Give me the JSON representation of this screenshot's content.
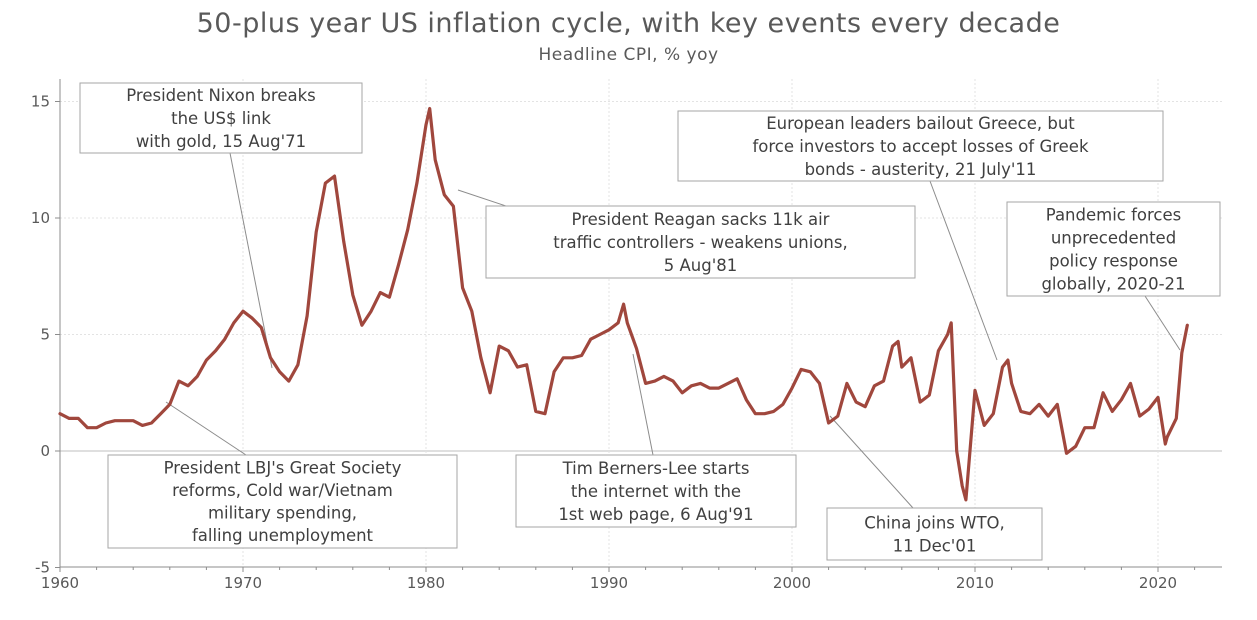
{
  "chart_data": {
    "type": "line",
    "title": "50-plus year US inflation cycle, with key events every decade",
    "subtitle": "Headline CPI, % yoy",
    "xlabel": "",
    "ylabel": "",
    "xlim": [
      1960,
      2023.5
    ],
    "ylim": [
      -5,
      16
    ],
    "grid": true,
    "line_color": "#a0473d",
    "x_ticks": [
      1960,
      1970,
      1980,
      1990,
      2000,
      2010,
      2020
    ],
    "y_ticks": [
      -5,
      0,
      5,
      10,
      15
    ],
    "series": [
      {
        "name": "",
        "x": [
          1960.0,
          1960.5,
          1961.0,
          1961.5,
          1962.0,
          1962.5,
          1963.0,
          1963.5,
          1964.0,
          1964.5,
          1965.0,
          1965.5,
          1966.0,
          1966.5,
          1967.0,
          1967.5,
          1968.0,
          1968.5,
          1969.0,
          1969.5,
          1970.0,
          1970.5,
          1971.0,
          1971.5,
          1972.0,
          1972.5,
          1973.0,
          1973.5,
          1974.0,
          1974.5,
          1975.0,
          1975.5,
          1976.0,
          1976.5,
          1977.0,
          1977.5,
          1978.0,
          1978.5,
          1979.0,
          1979.5,
          1980.0,
          1980.2,
          1980.5,
          1981.0,
          1981.5,
          1982.0,
          1982.5,
          1983.0,
          1983.5,
          1984.0,
          1984.5,
          1985.0,
          1985.5,
          1986.0,
          1986.5,
          1987.0,
          1987.5,
          1988.0,
          1988.5,
          1989.0,
          1989.5,
          1990.0,
          1990.5,
          1990.8,
          1991.0,
          1991.5,
          1992.0,
          1992.5,
          1993.0,
          1993.5,
          1994.0,
          1994.5,
          1995.0,
          1995.5,
          1996.0,
          1996.5,
          1997.0,
          1997.5,
          1998.0,
          1998.5,
          1999.0,
          1999.5,
          2000.0,
          2000.5,
          2001.0,
          2001.5,
          2002.0,
          2002.5,
          2003.0,
          2003.5,
          2004.0,
          2004.5,
          2005.0,
          2005.5,
          2005.8,
          2006.0,
          2006.5,
          2007.0,
          2007.5,
          2008.0,
          2008.5,
          2008.7,
          2009.0,
          2009.3,
          2009.5,
          2010.0,
          2010.5,
          2011.0,
          2011.5,
          2011.8,
          2012.0,
          2012.5,
          2013.0,
          2013.5,
          2014.0,
          2014.5,
          2015.0,
          2015.5,
          2016.0,
          2016.5,
          2017.0,
          2017.5,
          2018.0,
          2018.5,
          2019.0,
          2019.5,
          2020.0,
          2020.4,
          2020.5,
          2021.0,
          2021.3,
          2021.6
        ],
        "values": [
          1.6,
          1.4,
          1.4,
          1.0,
          1.0,
          1.2,
          1.3,
          1.3,
          1.3,
          1.1,
          1.2,
          1.6,
          2.0,
          3.0,
          2.8,
          3.2,
          3.9,
          4.3,
          4.8,
          5.5,
          6.0,
          5.7,
          5.3,
          4.0,
          3.4,
          3.0,
          3.7,
          5.8,
          9.4,
          11.5,
          11.8,
          9.0,
          6.7,
          5.4,
          6.0,
          6.8,
          6.6,
          8.0,
          9.5,
          11.5,
          14.0,
          14.7,
          12.5,
          11.0,
          10.5,
          7.0,
          6.0,
          4.0,
          2.5,
          4.5,
          4.3,
          3.6,
          3.7,
          1.7,
          1.6,
          3.4,
          4.0,
          4.0,
          4.1,
          4.8,
          5.0,
          5.2,
          5.5,
          6.3,
          5.5,
          4.4,
          2.9,
          3.0,
          3.2,
          3.0,
          2.5,
          2.8,
          2.9,
          2.7,
          2.7,
          2.9,
          3.1,
          2.2,
          1.6,
          1.6,
          1.7,
          2.0,
          2.7,
          3.5,
          3.4,
          2.9,
          1.2,
          1.5,
          2.9,
          2.1,
          1.9,
          2.8,
          3.0,
          4.5,
          4.7,
          3.6,
          4.0,
          2.1,
          2.4,
          4.3,
          5.0,
          5.5,
          0.0,
          -1.5,
          -2.1,
          2.6,
          1.1,
          1.6,
          3.6,
          3.9,
          2.9,
          1.7,
          1.6,
          2.0,
          1.5,
          2.0,
          -0.1,
          0.2,
          1.0,
          1.0,
          2.5,
          1.7,
          2.2,
          2.9,
          1.5,
          1.8,
          2.3,
          0.3,
          0.6,
          1.4,
          4.2,
          5.4
        ]
      }
    ],
    "annotations": [
      {
        "lines": [
          "President Nixon breaks",
          "the US$ link",
          "with gold, 15 Aug'71"
        ]
      },
      {
        "lines": [
          "President Reagan sacks 11k air",
          "traffic controllers - weakens unions,",
          "5 Aug'81"
        ]
      },
      {
        "lines": [
          "European leaders bailout Greece, but",
          "force investors to accept losses of Greek",
          "bonds - austerity, 21 July'11"
        ]
      },
      {
        "lines": [
          "Pandemic forces",
          "unprecedented",
          "policy response",
          "globally, 2020-21"
        ]
      },
      {
        "lines": [
          "President LBJ's Great Society",
          "reforms, Cold war/Vietnam",
          "military spending,",
          "falling unemployment"
        ]
      },
      {
        "lines": [
          "Tim Berners-Lee starts",
          "the internet with the",
          "1st web page, 6 Aug'91"
        ]
      },
      {
        "lines": [
          "China joins WTO,",
          "11 Dec'01"
        ]
      }
    ]
  }
}
